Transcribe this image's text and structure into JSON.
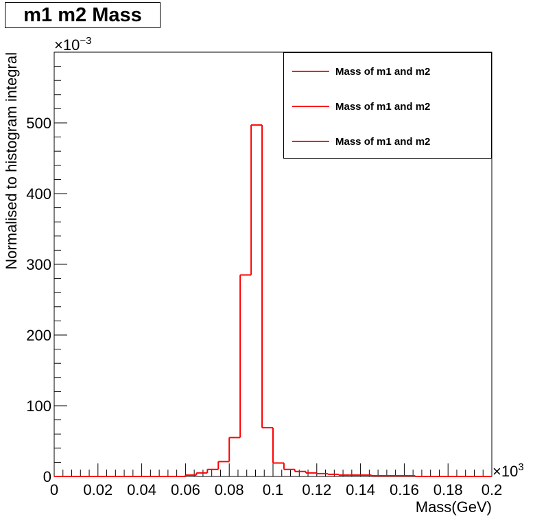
{
  "title": "m1 m2 Mass",
  "legend": {
    "entries": [
      {
        "label": "Mass of m1 and m2",
        "color": "#ff0000"
      },
      {
        "label": "Mass of m1 and m2",
        "color": "#ff0000"
      },
      {
        "label": "Mass of m1 and m2",
        "color": "#ff0000"
      }
    ]
  },
  "chart_data": {
    "type": "bar",
    "title": "m1 m2 Mass",
    "xlabel": "Mass(GeV)",
    "ylabel": "Normalised to histogram integral",
    "x_multiplier_label": "×10^3",
    "y_multiplier_label": "×10^-3",
    "xlim": [
      0,
      0.2
    ],
    "ylim": [
      0,
      600
    ],
    "x_ticks": [
      "0",
      "0.02",
      "0.04",
      "0.06",
      "0.08",
      "0.1",
      "0.12",
      "0.14",
      "0.16",
      "0.18",
      "0.2"
    ],
    "y_ticks": [
      "0",
      "100",
      "200",
      "300",
      "400",
      "500"
    ],
    "bin_width": 0.005,
    "series": [
      {
        "name": "Mass of m1 and m2",
        "color": "#ff0000",
        "bin_edges_start": 0,
        "values": [
          0,
          0,
          0,
          0,
          0,
          0,
          0,
          0,
          0,
          0,
          0,
          0,
          2,
          5,
          10,
          21,
          55,
          285,
          497,
          69,
          19,
          10,
          7,
          5,
          4,
          3,
          2,
          2,
          2,
          1,
          1,
          1,
          1,
          0,
          0,
          0,
          0,
          0,
          0,
          0
        ]
      }
    ],
    "grid": false,
    "legend_position": "top-right"
  }
}
